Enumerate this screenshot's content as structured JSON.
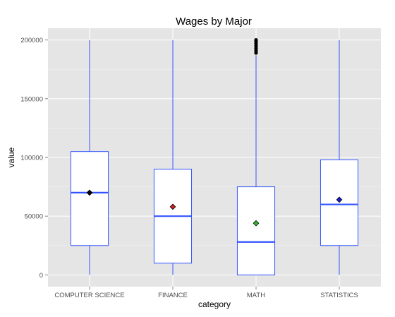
{
  "chart_data": {
    "type": "box",
    "title": "Wages by Major",
    "xlabel": "category",
    "ylabel": "value",
    "ylim": [
      -10000,
      210000
    ],
    "yticks": [
      0,
      50000,
      100000,
      150000,
      200000
    ],
    "ytick_labels": [
      "0",
      "50000",
      "100000",
      "150000",
      "200000"
    ],
    "grid": true,
    "categories": [
      "COMPUTER SCIENCE",
      "FINANCE",
      "MATH",
      "STATISTICS"
    ],
    "boxes": [
      {
        "category": "COMPUTER SCIENCE",
        "whisker_low": 0,
        "q1": 25000,
        "median": 70000,
        "q3": 105000,
        "whisker_high": 200000,
        "mean": 70000,
        "mean_color": "#000000",
        "outliers": []
      },
      {
        "category": "FINANCE",
        "whisker_low": 0,
        "q1": 10000,
        "median": 50000,
        "q3": 90000,
        "whisker_high": 200000,
        "mean": 58000,
        "mean_color": "#cc1f1f",
        "outliers": []
      },
      {
        "category": "MATH",
        "whisker_low": 0,
        "q1": 0,
        "median": 28000,
        "q3": 75000,
        "whisker_high": 187000,
        "mean": 44000,
        "mean_color": "#2eb82e",
        "outliers": [
          189000,
          191000,
          193000,
          195000,
          197000,
          199000,
          200000
        ]
      },
      {
        "category": "STATISTICS",
        "whisker_low": 0,
        "q1": 25000,
        "median": 60000,
        "q3": 98000,
        "whisker_high": 200000,
        "mean": 64000,
        "mean_color": "#1a1acc",
        "outliers": []
      }
    ],
    "colors": {
      "panel_background": "#e5e5e5",
      "grid": "#ffffff",
      "box_line": "#3355ff",
      "outlier": "#000000",
      "axis_text": "#4d4d4d"
    }
  }
}
